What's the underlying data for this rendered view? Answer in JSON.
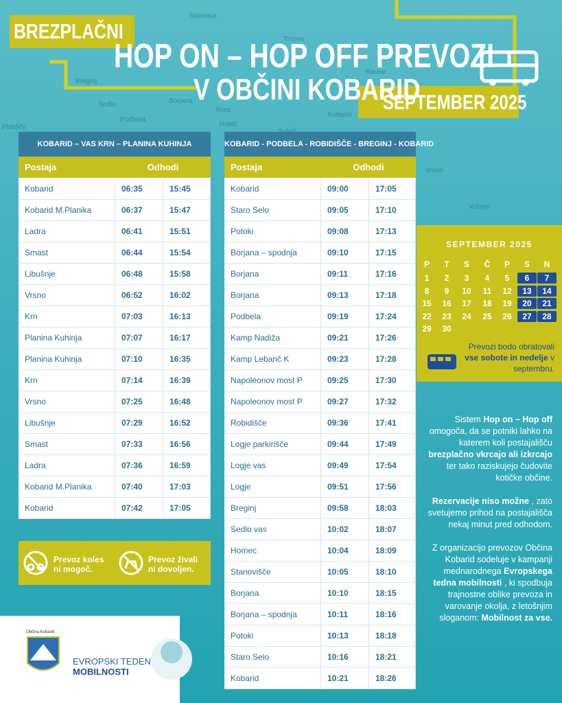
{
  "header": {
    "badge": "BREZPLAČNI",
    "title_line1": "HOP ON – HOP OFF PREVOZI",
    "title_line2": "V OBČINI KOBARID",
    "month": "SEPTEMBER 2025"
  },
  "map_labels": [
    "Srpenica",
    "Breginj",
    "Sedlo",
    "Borjana",
    "Kred",
    "Podbela",
    "Robič",
    "Platišče",
    "Kobarid",
    "Ravne",
    "Trnovo",
    "Vrsno",
    "Volarje",
    "Suhid"
  ],
  "tables": [
    {
      "title": "KOBARID – VAS KRN – PLANINA KUHINJA",
      "headers": [
        "Postaja",
        "Odhodi"
      ],
      "rows": [
        [
          "Kobarid",
          "06:35",
          "15:45"
        ],
        [
          "Kobarid M.Planika",
          "06:37",
          "15:47"
        ],
        [
          "Ladra",
          "06:41",
          "15:51"
        ],
        [
          "Smast",
          "06:44",
          "15:54"
        ],
        [
          "Libušnje",
          "06:48",
          "15:58"
        ],
        [
          "Vrsno",
          "06:52",
          "16:02"
        ],
        [
          "Krn",
          "07:03",
          "16:13"
        ],
        [
          "Planina Kuhinja",
          "07:07",
          "16:17"
        ],
        [
          "Planina Kuhinja",
          "07:10",
          "16:35"
        ],
        [
          "Krn",
          "07:14",
          "16:39"
        ],
        [
          "Vrsno",
          "07:25",
          "16:48"
        ],
        [
          "Libušnje",
          "07:29",
          "16:52"
        ],
        [
          "Smast",
          "07:33",
          "16:56"
        ],
        [
          "Ladra",
          "07:36",
          "16:59"
        ],
        [
          "Kobarid M.Planika",
          "07:40",
          "17:03"
        ],
        [
          "Kobarid",
          "07:42",
          "17:05"
        ]
      ]
    },
    {
      "title": "KOBARID - PODBELA - ROBIDIŠČE - BREGINJ - KOBARID",
      "headers": [
        "Postaja",
        "Odhodi"
      ],
      "rows": [
        [
          "Kobarid",
          "09:00",
          "17:05"
        ],
        [
          "Staro Selo",
          "09:05",
          "17:10"
        ],
        [
          "Potoki",
          "09:08",
          "17:13"
        ],
        [
          "Borjana – spodnja",
          "09:10",
          "17:15"
        ],
        [
          "Borjana",
          "09:11",
          "17:16"
        ],
        [
          "Borjana",
          "09:13",
          "17:18"
        ],
        [
          "Podbela",
          "09:19",
          "17:24"
        ],
        [
          "Kamp Nadiža",
          "09:21",
          "17:26"
        ],
        [
          "Kamp Lebanč K",
          "09:23",
          "17:28"
        ],
        [
          "Napoleonov most P",
          "09:25",
          "17:30"
        ],
        [
          "Napoleonov most P",
          "09:27",
          "17:32"
        ],
        [
          "Robidišče",
          "09:36",
          "17:41"
        ],
        [
          "Logje parkirišče",
          "09:44",
          "17:49"
        ],
        [
          "Logje vas",
          "09:49",
          "17:54"
        ],
        [
          "Logje",
          "09:51",
          "17:56"
        ],
        [
          "Breginj",
          "09:58",
          "18:03"
        ],
        [
          "Sedlo vas",
          "10:02",
          "18:07"
        ],
        [
          "Homec",
          "10:04",
          "18:09"
        ],
        [
          "Stanovišče",
          "10:05",
          "18:10"
        ],
        [
          "Borjana",
          "10:10",
          "18:15"
        ],
        [
          "Borjana – spodnja",
          "10:11",
          "18:16"
        ],
        [
          "Potoki",
          "10:13",
          "18:18"
        ],
        [
          "Staro Selo",
          "10:16",
          "18:21"
        ],
        [
          "Kobarid",
          "10:21",
          "18:26"
        ]
      ]
    }
  ],
  "calendar": {
    "title": "SEPTEMBER 2025",
    "weekdays": [
      "P",
      "T",
      "S",
      "Č",
      "P",
      "S",
      "N"
    ],
    "weeks": [
      [
        1,
        2,
        3,
        4,
        5,
        6,
        7
      ],
      [
        8,
        9,
        10,
        11,
        12,
        13,
        14
      ],
      [
        15,
        16,
        17,
        18,
        19,
        20,
        21
      ],
      [
        22,
        23,
        24,
        25,
        26,
        27,
        28
      ],
      [
        29,
        30
      ]
    ],
    "note": [
      {
        "text": "Prevozi bodo obratovali",
        "bold": false
      },
      {
        "text": "vse sobote in nedelje",
        "bold": true
      },
      {
        "text": "v septembru.",
        "bold": false
      }
    ]
  },
  "info": [
    [
      {
        "text": "Sistem",
        "bold": false
      },
      {
        "text": "Hop on – Hop off",
        "bold": true
      },
      {
        "text": "omogoča, da se potniki lahko na katerem koli postajališču",
        "bold": false
      },
      {
        "text": "brezplačno vkrcajo ali izkrcajo",
        "bold": true
      },
      {
        "text": "ter tako raziskujejo čudovite kotičke občine.",
        "bold": false
      }
    ],
    [
      {
        "text": "Rezervacije niso možne",
        "bold": true
      },
      {
        "text": ", zato svetujemo prihod na postajališča nekaj minut pred odhodom.",
        "bold": false
      }
    ],
    [
      {
        "text": "Z organizacijo prevozov Občina Kobarid sodeluje v kampanji mednarodnega",
        "bold": false
      },
      {
        "text": "Evropskega tedna mobilnosti",
        "bold": true
      },
      {
        "text": ", ki spodbuja trajnostne oblike prevoza in varovanje okolja, z letošnjim sloganom:",
        "bold": false
      },
      {
        "text": "Mobilnost za vse.",
        "bold": true
      }
    ]
  ],
  "notices": [
    "Prevoz koles ni mogoč.",
    "Prevoz živali ni dovoljen."
  ],
  "logos": {
    "municipality": "Občina Kobarid",
    "campaign_line1": "EVROPSKI TEDEN",
    "campaign_line2": "MOBILNOSTI"
  }
}
